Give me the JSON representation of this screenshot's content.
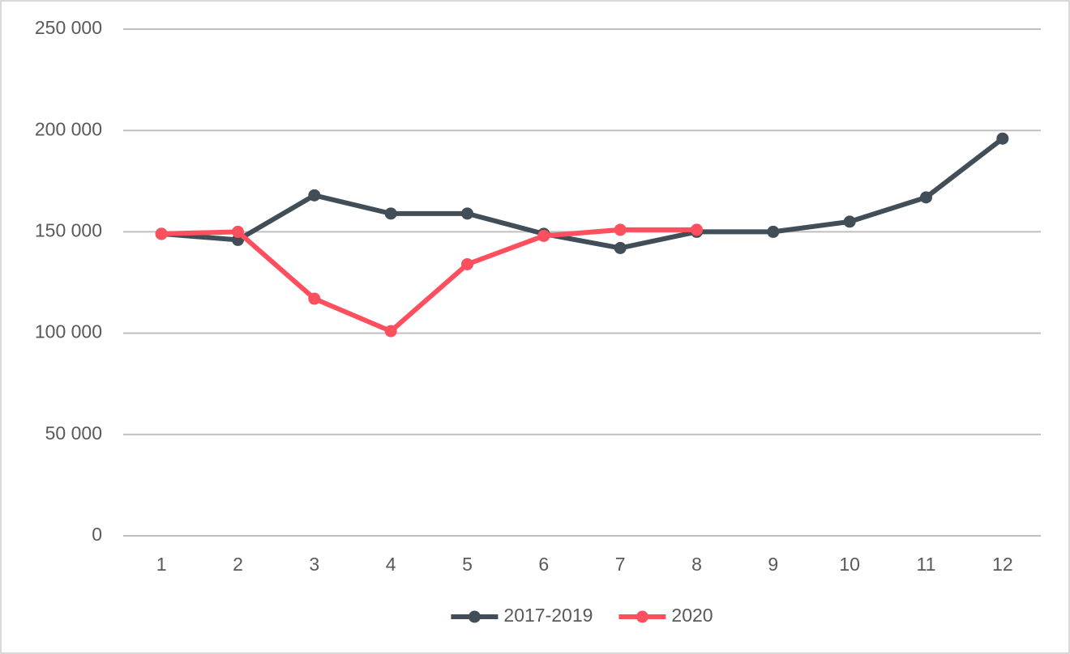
{
  "chart_data": {
    "type": "line",
    "categories": [
      "1",
      "2",
      "3",
      "4",
      "5",
      "6",
      "7",
      "8",
      "9",
      "10",
      "11",
      "12"
    ],
    "series": [
      {
        "name": "2017-2019",
        "color": "#414e58",
        "values": [
          149000,
          146000,
          168000,
          159000,
          159000,
          149000,
          142000,
          150000,
          150000,
          155000,
          167000,
          196000
        ]
      },
      {
        "name": "2020",
        "color": "#fe4f5e",
        "values": [
          149000,
          150000,
          117000,
          101000,
          134000,
          148000,
          151000,
          151000,
          null,
          null,
          null,
          null
        ]
      }
    ],
    "ylim": [
      0,
      250000
    ],
    "yticks": [
      {
        "value": 0,
        "label": "0"
      },
      {
        "value": 50000,
        "label": "50 000"
      },
      {
        "value": 100000,
        "label": "100 000"
      },
      {
        "value": 150000,
        "label": "150 000"
      },
      {
        "value": 200000,
        "label": "200 000"
      },
      {
        "value": 250000,
        "label": "250 000"
      }
    ],
    "grid": true,
    "legend": "bottom"
  }
}
